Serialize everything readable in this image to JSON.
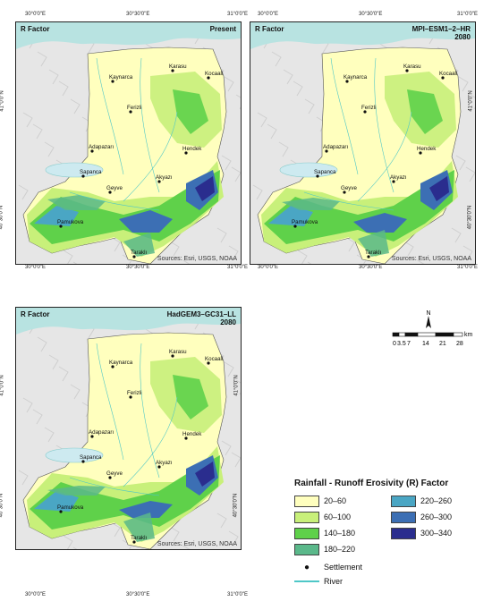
{
  "maps": [
    {
      "title": "R Factor",
      "scenario": "Present",
      "year": "",
      "sources": "Sources: Esri, USGS, NOAA"
    },
    {
      "title": "R Factor",
      "scenario": "MPI–ESM1–2–HR",
      "year": "2080",
      "sources": "Sources: Esri, USGS, NOAA"
    },
    {
      "title": "R Factor",
      "scenario": "HadGEM3–GC31–LL",
      "year": "2080",
      "sources": "Sources: Esri, USGS, NOAA"
    }
  ],
  "ticks": {
    "lon": [
      "30°0'0\"E",
      "30°30'0\"E",
      "31°0'0\"E"
    ],
    "lat_top": "41°0'0\"N",
    "lat_bottom": "40°30'0\"N"
  },
  "places": [
    "Karasu",
    "Kaynarca",
    "Kocaali",
    "Ferizli",
    "Adapazarı",
    "Hendek",
    "Sapanca",
    "Akyazı",
    "Geyve",
    "Pamukova",
    "Taraklı"
  ],
  "legend": {
    "title": "Rainfall - Runoff Erosivity (R) Factor",
    "classes": [
      {
        "label": "20–60",
        "color": "#ffffbe"
      },
      {
        "label": "60–100",
        "color": "#c8f07a"
      },
      {
        "label": "140–180",
        "color": "#5fd14a"
      },
      {
        "label": "180–220",
        "color": "#5ab88a"
      },
      {
        "label": "220–260",
        "color": "#4aa6c4"
      },
      {
        "label": "260–300",
        "color": "#3c6fb4"
      },
      {
        "label": "300–340",
        "color": "#2a2d8e"
      }
    ],
    "settlement": "Settlement",
    "river": "River"
  },
  "scale_bar": {
    "north": "N",
    "labels": [
      "0",
      "3.5",
      "7",
      "14",
      "21",
      "28"
    ],
    "unit": "km"
  }
}
